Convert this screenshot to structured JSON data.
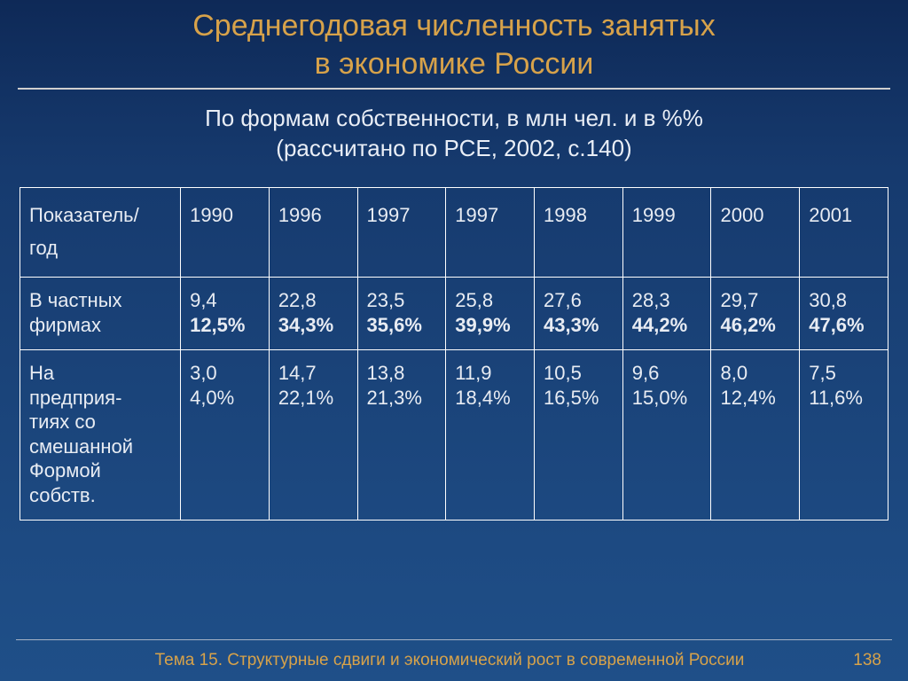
{
  "colors": {
    "background_top": "#0e2957",
    "background_bottom": "#1f4f88",
    "title_color": "#d7a24a",
    "text_color": "#e8ecf3",
    "border_color": "#ffffff",
    "rule_color": "#cfcfcf",
    "footer_rule_color": "#a7b3c6"
  },
  "typography": {
    "title_fontsize": 34,
    "subtitle_fontsize": 26,
    "cell_fontsize": 22,
    "footer_fontsize": 19,
    "font_family": "Arial"
  },
  "title": {
    "line1": "Среднегодовая численность занятых",
    "line2": "в экономике России"
  },
  "subtitle": {
    "line1": "По формам собственности, в млн чел. и в %%",
    "line2": "(рассчитано по РСЕ, 2002, с.140)"
  },
  "table": {
    "type": "table",
    "column_widths_pct": [
      18.5,
      10.19,
      10.19,
      10.19,
      10.19,
      10.19,
      10.19,
      10.19,
      10.19
    ],
    "header": {
      "label_line1": "Показатель/",
      "label_line2": "год",
      "years": [
        "1990",
        "1996",
        "1997",
        "1997",
        "1998",
        "1999",
        "2000",
        "2001"
      ]
    },
    "rows": [
      {
        "label_lines": [
          "В частных",
          "фирмах"
        ],
        "values": [
          "9,4",
          "22,8",
          "23,5",
          "25,8",
          "27,6",
          "28,3",
          "29,7",
          "30,8"
        ],
        "percents": [
          "12,5%",
          "34,3%",
          "35,6%",
          "39,9%",
          "43,3%",
          "44,2%",
          "46,2%",
          "47,6%"
        ],
        "percent_bold": true
      },
      {
        "label_lines": [
          "На",
          "предприя-",
          "тиях со",
          "смешанной",
          "Формой",
          "собств."
        ],
        "values": [
          "3,0",
          "14,7",
          "13,8",
          "11,9",
          "10,5",
          "9,6",
          "8,0",
          "7,5"
        ],
        "percents": [
          "4,0%",
          "22,1%",
          "21,3%",
          "18,4%",
          "16,5%",
          "15,0%",
          "12,4%",
          "11,6%"
        ],
        "percent_bold": false
      }
    ]
  },
  "footer": {
    "text": "Тема 15. Структурные сдвиги  и экономический рост в современной России",
    "page": "138"
  }
}
